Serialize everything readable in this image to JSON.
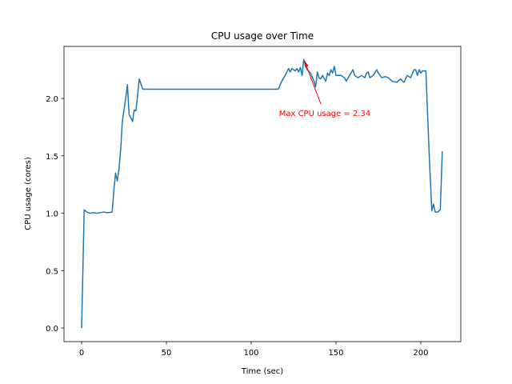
{
  "chart_data": {
    "type": "line",
    "title": "CPU usage over Time",
    "x_label": "Time (sec)",
    "y_label": "CPU usage (cores)",
    "color": "#1f77b4",
    "x": [
      0,
      1.5,
      3,
      5,
      7,
      9,
      11,
      13,
      15,
      18,
      19,
      20,
      21,
      22,
      23,
      24,
      26,
      27,
      28,
      30,
      31,
      32,
      34,
      36,
      116,
      118,
      120,
      122,
      123,
      124,
      126,
      127,
      128,
      129,
      130,
      131,
      132,
      133,
      135,
      137,
      138,
      139,
      140,
      141,
      142,
      144,
      145,
      146,
      147,
      148,
      149,
      150,
      153,
      155,
      156,
      158,
      160,
      161,
      163,
      165,
      167,
      168,
      169,
      170,
      172,
      174,
      175,
      177,
      179,
      181,
      183,
      186,
      188,
      190,
      192,
      194,
      196,
      197,
      198,
      199,
      200,
      201,
      203,
      205,
      206.5,
      207.5,
      208.5,
      210,
      211.5,
      212.7
    ],
    "values": [
      0,
      1.03,
      1.01,
      1.0,
      1.005,
      1.0,
      1.005,
      1.01,
      1.005,
      1.01,
      1.2,
      1.35,
      1.28,
      1.38,
      1.55,
      1.8,
      2.0,
      2.12,
      1.86,
      1.8,
      1.9,
      1.89,
      2.17,
      2.08,
      2.08,
      2.15,
      2.2,
      2.26,
      2.23,
      2.26,
      2.24,
      2.26,
      2.23,
      2.27,
      2.2,
      2.34,
      2.28,
      2.25,
      2.22,
      2.15,
      2.1,
      2.23,
      2.18,
      2.17,
      2.2,
      2.15,
      2.22,
      2.2,
      2.25,
      2.22,
      2.28,
      2.2,
      2.2,
      2.18,
      2.15,
      2.2,
      2.25,
      2.2,
      2.18,
      2.2,
      2.18,
      2.22,
      2.23,
      2.18,
      2.2,
      2.25,
      2.22,
      2.18,
      2.19,
      2.18,
      2.15,
      2.14,
      2.17,
      2.14,
      2.2,
      2.18,
      2.25,
      2.25,
      2.2,
      2.25,
      2.22,
      2.24,
      2.24,
      1.5,
      1.02,
      1.08,
      1.01,
      1.01,
      1.03,
      1.54
    ],
    "xlim": [
      -10.4,
      223.6
    ],
    "ylim": [
      -0.118,
      2.453
    ],
    "xticks": [
      0,
      50,
      100,
      150,
      200
    ],
    "yticks": [
      {
        "value": 0,
        "label": "0.0"
      },
      {
        "value": 0.5,
        "label": "0.5"
      },
      {
        "value": 1,
        "label": "1.0"
      },
      {
        "value": 1.5,
        "label": "1.5"
      },
      {
        "value": 2,
        "label": "2.0"
      }
    ],
    "annotation": {
      "text": "Max CPU usage = 2.34",
      "color": "red"
    }
  }
}
